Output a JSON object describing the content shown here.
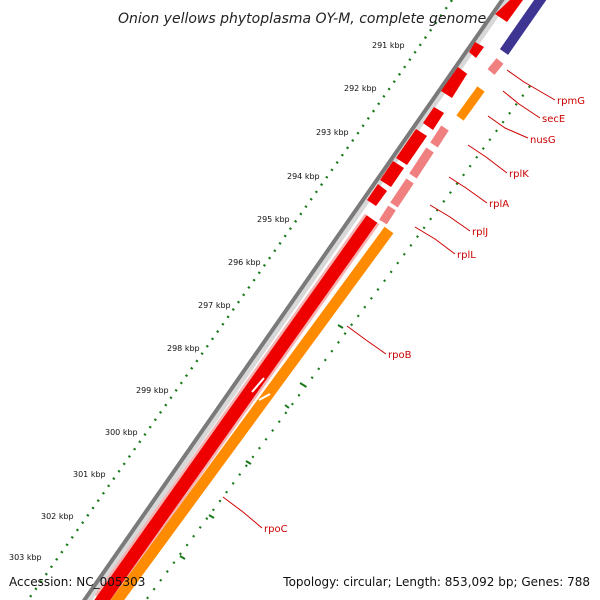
{
  "title": "Onion yellows phytoplasma OY-M, complete genome",
  "footer": {
    "accession": "Accession: NC_005303",
    "stats": "Topology: circular; Length: 853,092 bp; Genes: 788"
  },
  "ticks": [
    "291 kbp",
    "292 kbp",
    "293 kbp",
    "294 kbp",
    "295 kbp",
    "296 kbp",
    "297 kbp",
    "298 kbp",
    "299 kbp",
    "300 kbp",
    "301 kbp",
    "302 kbp",
    "303 kbp"
  ],
  "genes": [
    "rpmG",
    "secE",
    "nusG",
    "rplK",
    "rplA",
    "rplJ",
    "rplL",
    "rpoB",
    "rpoC"
  ],
  "colors": {
    "backbone": "#7a7a7a",
    "forward_gene": "#ee0000",
    "reverse_gene": "#ff8c00",
    "rrna_gene": "#f08080",
    "other_track": "#3d3591",
    "gc_dots": "#1a7a1a",
    "leader_line": "#cc0000"
  }
}
